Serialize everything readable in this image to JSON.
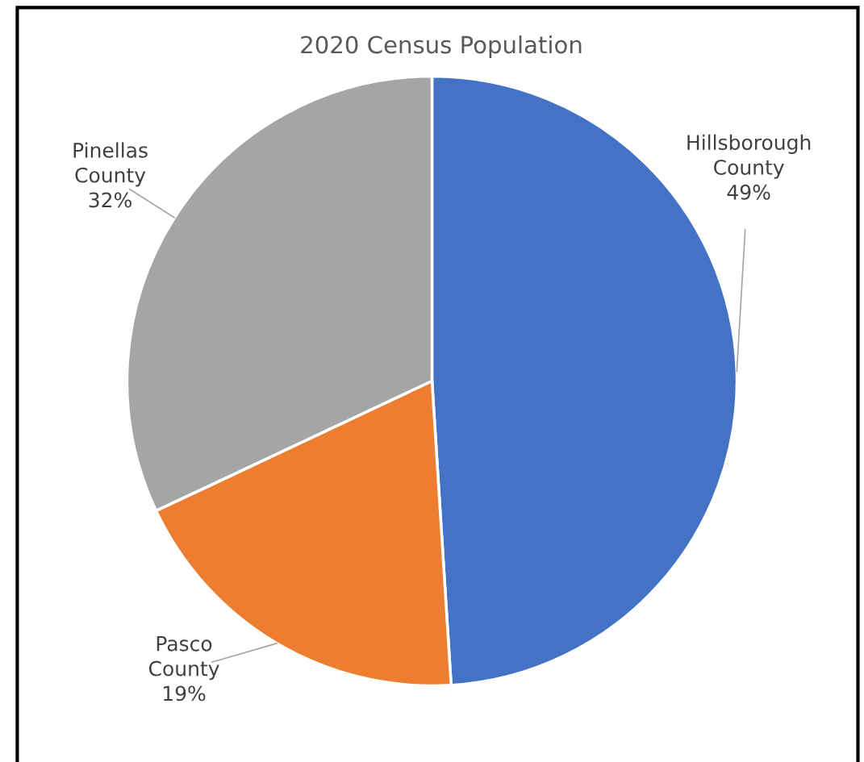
{
  "chart_data": {
    "type": "pie",
    "title": "2020 Census Population",
    "categories": [
      "Hillsborough County",
      "Pasco County",
      "Pinellas County"
    ],
    "values": [
      49,
      19,
      32
    ],
    "colors": [
      "#4472c4",
      "#ed7d31",
      "#a5a5a5"
    ],
    "value_labels": [
      "49%",
      "19%",
      "32%"
    ]
  }
}
